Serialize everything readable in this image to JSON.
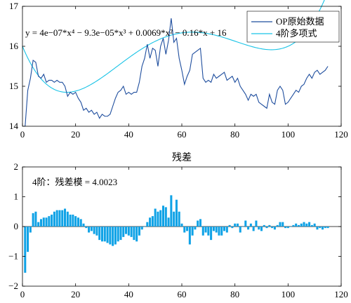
{
  "colors": {
    "original": "#1f4e9e",
    "fit": "#19c3e6",
    "residual": "#0fa2e6",
    "axis": "#000000"
  },
  "chart_data": [
    {
      "type": "line",
      "title": "",
      "xlabel": "",
      "ylabel": "",
      "xlim": [
        0,
        120
      ],
      "ylim": [
        14,
        17
      ],
      "xticks": [
        0,
        20,
        40,
        60,
        80,
        100,
        120
      ],
      "yticks": [
        14,
        15,
        16,
        17
      ],
      "xtick_labels": [
        "0",
        "20",
        "40",
        "60",
        "80",
        "100",
        "120"
      ],
      "ytick_labels": [
        "14",
        "15",
        "16",
        "17"
      ],
      "equation": "y = 4e−07*x⁴ − 9.3e−05*x³ + 0.0069*x² − 0.16*x + 16",
      "legend": {
        "location": "top-right",
        "entries": [
          "OP原始数据",
          "4阶多项式"
        ]
      },
      "series": [
        {
          "name": "OP原始数据",
          "kind": "line",
          "x": [
            1,
            2,
            3,
            4,
            5,
            6,
            7,
            8,
            9,
            10,
            11,
            12,
            13,
            14,
            15,
            16,
            17,
            18,
            19,
            20,
            21,
            22,
            23,
            24,
            25,
            26,
            27,
            28,
            29,
            30,
            31,
            32,
            33,
            34,
            35,
            36,
            37,
            38,
            39,
            40,
            41,
            42,
            43,
            44,
            45,
            46,
            47,
            48,
            49,
            50,
            51,
            52,
            53,
            54,
            55,
            56,
            57,
            58,
            59,
            60,
            61,
            62,
            63,
            64,
            65,
            66,
            67,
            68,
            69,
            70,
            71,
            72,
            73,
            74,
            75,
            76,
            77,
            78,
            79,
            80,
            81,
            82,
            83,
            84,
            85,
            86,
            87,
            88,
            89,
            90,
            91,
            92,
            93,
            94,
            95,
            96,
            97,
            98,
            99,
            100,
            101,
            102,
            103,
            104,
            105,
            106,
            107,
            108,
            109,
            110,
            111,
            112,
            113,
            114,
            115
          ],
          "y": [
            14.0,
            14.9,
            15.2,
            15.65,
            15.6,
            15.25,
            15.2,
            15.3,
            15.1,
            15.15,
            15.15,
            15.1,
            15.15,
            15.1,
            15.1,
            15.0,
            14.75,
            14.85,
            14.8,
            14.85,
            14.7,
            14.6,
            14.4,
            14.45,
            14.35,
            14.4,
            14.3,
            14.35,
            14.2,
            14.3,
            14.25,
            14.25,
            14.3,
            14.5,
            14.7,
            14.85,
            14.9,
            15.0,
            14.8,
            14.85,
            14.8,
            14.85,
            14.85,
            15.1,
            15.5,
            15.7,
            16.05,
            15.7,
            15.95,
            15.9,
            15.5,
            16.0,
            16.2,
            15.8,
            16.15,
            16.7,
            16.1,
            16.2,
            15.7,
            15.4,
            15.05,
            15.25,
            15.4,
            15.8,
            15.85,
            15.9,
            15.95,
            15.2,
            15.1,
            15.15,
            15.1,
            15.3,
            15.2,
            15.25,
            15.3,
            15.35,
            15.15,
            15.2,
            15.25,
            15.1,
            15.2,
            15.0,
            14.9,
            14.8,
            14.65,
            14.8,
            14.75,
            14.8,
            14.6,
            14.55,
            14.5,
            14.45,
            14.8,
            14.6,
            14.55,
            14.9,
            15.0,
            14.9,
            14.55,
            14.6,
            14.7,
            14.8,
            14.9,
            14.85,
            15.0,
            15.05,
            15.2,
            15.3,
            15.2,
            15.35,
            15.4,
            15.3,
            15.35,
            15.4,
            15.5
          ]
        },
        {
          "name": "4阶多项式",
          "kind": "curve",
          "coefficients": [
            4e-07,
            -9.3e-05,
            0.0069,
            -0.16,
            16
          ],
          "x_range": [
            0,
            120
          ]
        }
      ]
    },
    {
      "type": "bar",
      "title": "残差",
      "xlabel": "",
      "ylabel": "",
      "xlim": [
        0,
        120
      ],
      "ylim": [
        -2,
        2
      ],
      "xticks": [
        0,
        20,
        40,
        60,
        80,
        100,
        120
      ],
      "yticks": [
        -2,
        -1,
        0,
        1,
        2
      ],
      "xtick_labels": [
        "0",
        "20",
        "40",
        "60",
        "80",
        "100",
        "120"
      ],
      "ytick_labels": [
        "−2",
        "−1",
        "0",
        "1",
        "2"
      ],
      "annotation": "4阶：残差模 = 4.0023",
      "series": [
        {
          "name": "",
          "x": [
            1,
            2,
            3,
            4,
            5,
            6,
            7,
            8,
            9,
            10,
            11,
            12,
            13,
            14,
            15,
            16,
            17,
            18,
            19,
            20,
            21,
            22,
            23,
            24,
            25,
            26,
            27,
            28,
            29,
            30,
            31,
            32,
            33,
            34,
            35,
            36,
            37,
            38,
            39,
            40,
            41,
            42,
            43,
            44,
            45,
            46,
            47,
            48,
            49,
            50,
            51,
            52,
            53,
            54,
            55,
            56,
            57,
            58,
            59,
            60,
            61,
            62,
            63,
            64,
            65,
            66,
            67,
            68,
            69,
            70,
            71,
            72,
            73,
            74,
            75,
            76,
            77,
            78,
            79,
            80,
            81,
            82,
            83,
            84,
            85,
            86,
            87,
            88,
            89,
            90,
            91,
            92,
            93,
            94,
            95,
            96,
            97,
            98,
            99,
            100,
            101,
            102,
            103,
            104,
            105,
            106,
            107,
            108,
            109,
            110,
            111,
            112,
            113,
            114,
            115
          ],
          "values": [
            -1.55,
            -0.85,
            -0.2,
            0.45,
            0.5,
            0.15,
            0.25,
            0.3,
            0.3,
            0.35,
            0.4,
            0.5,
            0.55,
            0.55,
            0.55,
            0.6,
            0.5,
            0.4,
            0.4,
            0.35,
            0.3,
            0.25,
            0.1,
            -0.05,
            -0.2,
            -0.15,
            -0.25,
            -0.3,
            -0.45,
            -0.5,
            -0.5,
            -0.55,
            -0.6,
            -0.65,
            -0.6,
            -0.5,
            -0.45,
            -0.35,
            -0.25,
            -0.3,
            -0.35,
            -0.45,
            -0.5,
            -0.3,
            -0.1,
            0.0,
            0.15,
            0.3,
            0.35,
            0.6,
            0.5,
            0.55,
            0.7,
            0.65,
            0.3,
            1.05,
            0.5,
            0.9,
            0.5,
            0.1,
            -0.2,
            -0.15,
            -0.6,
            -0.3,
            -0.1,
            0.2,
            0.25,
            -0.3,
            -0.2,
            -0.3,
            -0.45,
            -0.15,
            -0.2,
            -0.3,
            -0.3,
            -0.15,
            -0.2,
            0.05,
            -0.05,
            0.1,
            0.1,
            -0.2,
            0.0,
            0.2,
            -0.1,
            0.1,
            -0.15,
            0.2,
            -0.1,
            -0.15,
            0.05,
            -0.05,
            0.05,
            -0.05,
            -0.1,
            0.05,
            0.15,
            0.15,
            -0.05,
            -0.05,
            0.0,
            0.05,
            0.1,
            0.05,
            0.1,
            0.15,
            0.1,
            0.15,
            0.05,
            0.1,
            -0.1,
            -0.05,
            -0.1,
            -0.05,
            -0.05
          ]
        }
      ]
    }
  ]
}
